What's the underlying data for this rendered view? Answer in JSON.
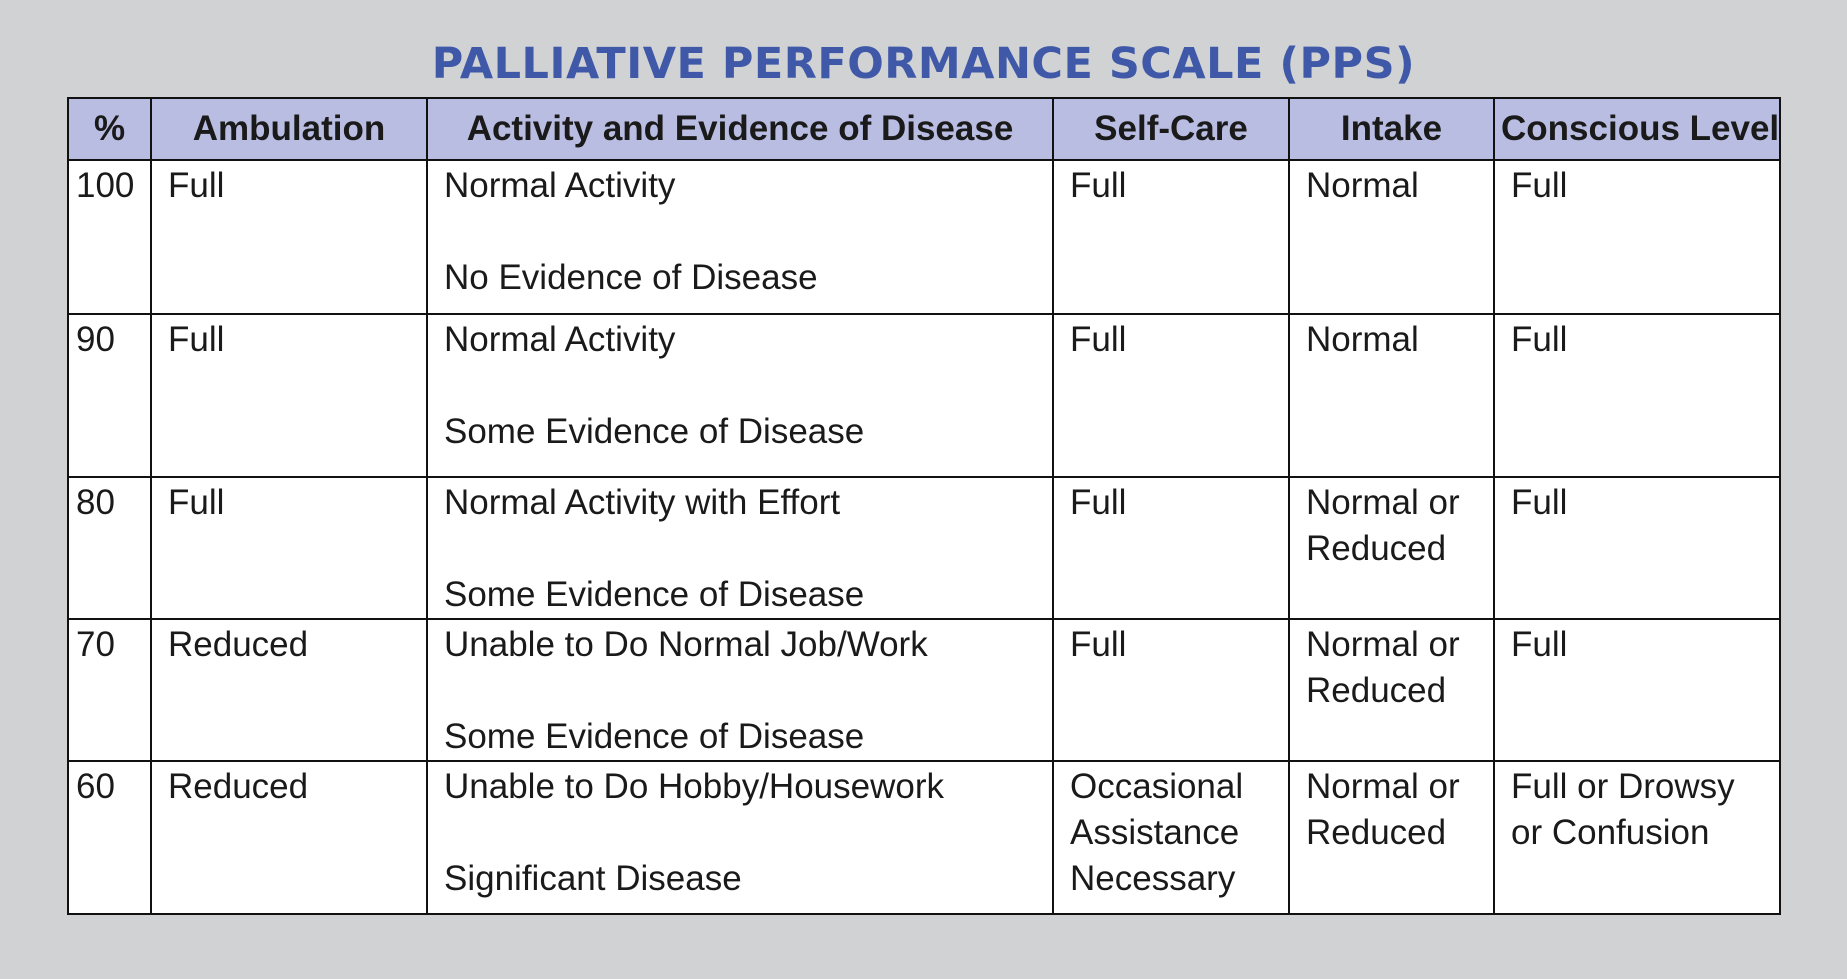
{
  "title": "PALLIATIVE PERFORMANCE SCALE (PPS)",
  "colors": {
    "title": "#3f59a8",
    "header_bg": "#b9bde2",
    "page_bg": "#d1d2d4",
    "border": "#111111"
  },
  "headers": {
    "percent": "%",
    "ambulation": "Ambulation",
    "activity": "Activity and Evidence of Disease",
    "self_care": "Self-Care",
    "intake": "Intake",
    "conscious": "Conscious Level"
  },
  "rows": [
    {
      "percent": "100",
      "ambulation": "Full",
      "activity": "Normal Activity",
      "disease": "No Evidence of Disease",
      "self_care": [
        "Full"
      ],
      "intake": [
        "Normal"
      ],
      "conscious": [
        "Full"
      ]
    },
    {
      "percent": "90",
      "ambulation": "Full",
      "activity": "Normal Activity",
      "disease": "Some Evidence of Disease",
      "self_care": [
        "Full"
      ],
      "intake": [
        "Normal"
      ],
      "conscious": [
        "Full"
      ]
    },
    {
      "percent": "80",
      "ambulation": "Full",
      "activity": "Normal Activity with Effort",
      "disease": "Some Evidence of Disease",
      "self_care": [
        "Full"
      ],
      "intake": [
        "Normal or",
        "Reduced"
      ],
      "conscious": [
        "Full"
      ]
    },
    {
      "percent": "70",
      "ambulation": "Reduced",
      "activity": "Unable to Do Normal Job/Work",
      "disease": "Some Evidence of Disease",
      "self_care": [
        "Full"
      ],
      "intake": [
        "Normal or",
        "Reduced"
      ],
      "conscious": [
        "Full"
      ]
    },
    {
      "percent": "60",
      "ambulation": "Reduced",
      "activity": "Unable to Do Hobby/Housework",
      "disease": "Significant Disease",
      "self_care": [
        "Occasional",
        "Assistance",
        "Necessary"
      ],
      "intake": [
        "Normal or",
        "Reduced"
      ],
      "conscious": [
        "Full or Drowsy",
        "or Confusion"
      ]
    }
  ]
}
